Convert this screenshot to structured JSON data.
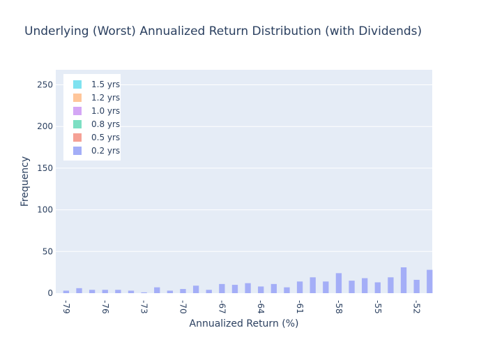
{
  "chart_data": {
    "type": "bar",
    "title": "Underlying (Worst) Annualized Return Distribution (with Dividends)",
    "xlabel": "Annualized Return (%)",
    "ylabel": "Frequency",
    "ylim": [
      0,
      268
    ],
    "xlim": [
      -79.8,
      -50.8
    ],
    "y_ticks": [
      0,
      50,
      100,
      150,
      200,
      250
    ],
    "x_ticks": [
      "-79",
      "-76",
      "-73",
      "-70",
      "-67",
      "-64",
      "-61",
      "-58",
      "-55",
      "-52"
    ],
    "x_tick_values": [
      -79,
      -76,
      -73,
      -70,
      -67,
      -64,
      -61,
      -58,
      -55,
      -52
    ],
    "grid": true,
    "legend": {
      "placement": "top-left"
    },
    "series": [
      {
        "name": "1.5 yrs",
        "color": "#7fe2f0",
        "x": [],
        "values": []
      },
      {
        "name": "1.2 yrs",
        "color": "#ffc69a",
        "x": [],
        "values": []
      },
      {
        "name": "1.0 yrs",
        "color": "#d4a6f5",
        "x": [],
        "values": []
      },
      {
        "name": "0.8 yrs",
        "color": "#7ddfc3",
        "x": [],
        "values": []
      },
      {
        "name": "0.5 yrs",
        "color": "#f5a195",
        "x": [],
        "values": []
      },
      {
        "name": "0.2 yrs",
        "color": "#a4aef7",
        "x": [
          -79.0,
          -78.5,
          -78.0,
          -77.5,
          -77.0,
          -76.5,
          -76.0,
          -75.5,
          -75.0,
          -74.5,
          -74.0,
          -73.5,
          -73.0,
          -72.5,
          -72.0,
          -71.5,
          -71.0,
          -70.5,
          -70.0,
          -69.5,
          -69.0,
          -68.5,
          -68.0,
          -67.5,
          -67.0,
          -66.5,
          -66.0,
          -65.5,
          -65.0,
          -64.5,
          -64.0,
          -63.5,
          -63.0,
          -62.5,
          -62.0,
          -61.5,
          -61.0,
          -60.5,
          -60.0,
          -59.5,
          -59.0,
          -58.5,
          -58.0,
          -57.5,
          -57.0,
          -56.5,
          -56.0,
          -55.5,
          -55.0,
          -54.5,
          -54.0,
          -53.5,
          -53.0,
          -52.5,
          -52.0,
          -51.5,
          -51.0
        ],
        "values": [
          3,
          0,
          6,
          0,
          4,
          0,
          4,
          0,
          4,
          0,
          3,
          0,
          1,
          0,
          7,
          0,
          3,
          0,
          5,
          0,
          9,
          0,
          4,
          0,
          11,
          0,
          10,
          0,
          12,
          0,
          8,
          0,
          11,
          0,
          7,
          0,
          14,
          0,
          19,
          0,
          14,
          0,
          24,
          0,
          15,
          0,
          18,
          0,
          13,
          0,
          19,
          0,
          31,
          0,
          16,
          0,
          28
        ]
      }
    ]
  }
}
